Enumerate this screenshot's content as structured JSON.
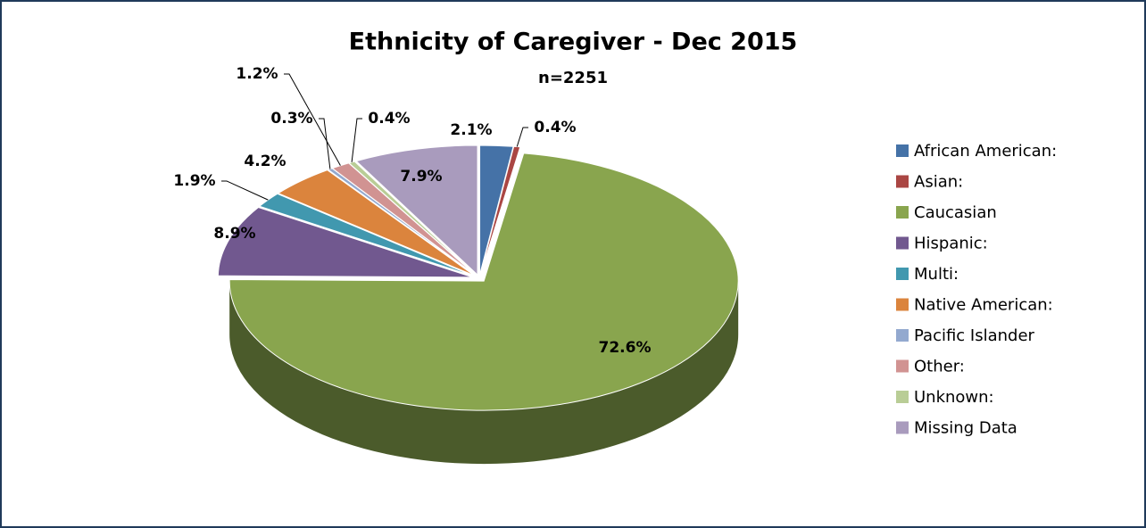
{
  "chart_data": {
    "type": "pie3d",
    "title": "Ethnicity of Caregiver - Dec 2015",
    "subtitle": "n=2251",
    "categories": [
      "African American:",
      "Asian:",
      "Caucasian",
      "Hispanic:",
      "Multi:",
      "Native American:",
      "Pacific Islander",
      "Other:",
      "Unknown:",
      "Missing Data"
    ],
    "values": [
      2.1,
      0.4,
      72.6,
      8.9,
      1.9,
      4.2,
      0.3,
      1.2,
      0.4,
      7.9
    ],
    "value_labels": [
      "2.1%",
      "0.4%",
      "72.6%",
      "8.9%",
      "1.9%",
      "4.2%",
      "0.3%",
      "1.2%",
      "0.4%",
      "7.9%"
    ],
    "colors": [
      "#4572a7",
      "#aa4643",
      "#89a54e",
      "#71588f",
      "#4198af",
      "#db843d",
      "#93a9cf",
      "#d19392",
      "#b9cd96",
      "#a99bbd"
    ],
    "legend": "right"
  }
}
